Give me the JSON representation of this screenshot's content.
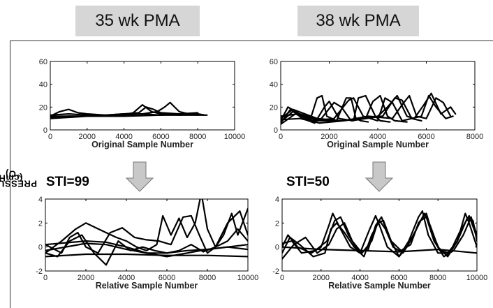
{
  "headers": {
    "left": "35 wk PMA",
    "right": "38 wk PMA"
  },
  "shared_ylabel": {
    "main": "PRESSURE",
    "unit": "(cmH",
    "sub": "2",
    "close": "O)"
  },
  "sti": {
    "left": "STI=99",
    "right": "STI=50"
  },
  "colors": {
    "line": "#000000",
    "arrow_fill": "#c8c8c8",
    "arrow_stroke": "#777777",
    "header_bg": "#d6d6d6"
  },
  "chart_data": [
    {
      "id": "tl",
      "type": "line",
      "xlabel": "Original Sample Number",
      "xlim": [
        0,
        10000
      ],
      "ylim": [
        0,
        60
      ],
      "xticks": [
        0,
        2000,
        4000,
        6000,
        8000,
        10000
      ],
      "yticks": [
        0,
        20,
        40,
        60
      ],
      "series": [
        {
          "x": [
            0,
            500,
            1000,
            1500,
            2000,
            3000,
            4000,
            5000,
            6000,
            7000,
            8000,
            8400
          ],
          "y": [
            12,
            16,
            18,
            15,
            14,
            13,
            14,
            14,
            13,
            14,
            14,
            13
          ]
        },
        {
          "x": [
            0,
            1000,
            2000,
            3000,
            4000,
            4500,
            5000,
            5500,
            6000,
            7000,
            8000,
            8300
          ],
          "y": [
            10,
            11,
            12,
            12,
            13,
            15,
            22,
            16,
            14,
            13,
            14,
            13
          ]
        },
        {
          "x": [
            0,
            1000,
            2000,
            3000,
            4000,
            5000,
            5800,
            6200,
            6500,
            7000,
            7500,
            8000
          ],
          "y": [
            11,
            12,
            12,
            12,
            13,
            14,
            16,
            20,
            24,
            16,
            14,
            13
          ]
        },
        {
          "x": [
            0,
            1000,
            2000,
            3000,
            4000,
            4800,
            5200,
            5600,
            6000,
            7000,
            8000
          ],
          "y": [
            13,
            14,
            13,
            13,
            14,
            15,
            20,
            18,
            15,
            14,
            15
          ]
        },
        {
          "x": [
            0,
            2000,
            4000,
            6000,
            8000,
            8500
          ],
          "y": [
            12,
            12,
            12,
            13,
            13,
            13
          ]
        }
      ]
    },
    {
      "id": "tr",
      "type": "line",
      "xlabel": "Original Sample Number",
      "xlim": [
        0,
        8000
      ],
      "ylim": [
        0,
        60
      ],
      "xticks": [
        0,
        2000,
        4000,
        6000,
        8000
      ],
      "yticks": [
        0,
        20,
        40,
        60
      ],
      "series": [
        {
          "x": [
            0,
            300,
            700,
            1200,
            1500,
            1700,
            1900,
            2300,
            2700,
            2900,
            3100,
            3300,
            3600
          ],
          "y": [
            8,
            20,
            15,
            8,
            28,
            30,
            12,
            8,
            28,
            28,
            10,
            8,
            7
          ]
        },
        {
          "x": [
            0,
            400,
            900,
            1400,
            1800,
            2000,
            2400,
            3000,
            3200,
            3500,
            3900,
            4100,
            4500
          ],
          "y": [
            6,
            18,
            10,
            6,
            20,
            25,
            10,
            8,
            28,
            30,
            12,
            8,
            7
          ]
        },
        {
          "x": [
            0,
            500,
            1100,
            1600,
            2200,
            2500,
            2900,
            3500,
            3800,
            4100,
            4400,
            4700,
            5200
          ],
          "y": [
            7,
            16,
            12,
            8,
            24,
            20,
            8,
            10,
            25,
            30,
            12,
            8,
            7
          ]
        },
        {
          "x": [
            0,
            600,
            1300,
            2200,
            2800,
            3000,
            3400,
            4000,
            4300,
            4600,
            5000,
            5400,
            5800
          ],
          "y": [
            5,
            14,
            8,
            10,
            26,
            28,
            12,
            8,
            28,
            24,
            8,
            10,
            8
          ]
        },
        {
          "x": [
            0,
            500,
            1500,
            2500,
            3500,
            4000,
            4400,
            4800,
            5200,
            5500,
            5900,
            6200,
            6600,
            7000,
            7200
          ],
          "y": [
            10,
            18,
            10,
            8,
            10,
            12,
            20,
            30,
            12,
            10,
            22,
            32,
            14,
            20,
            14
          ]
        },
        {
          "x": [
            0,
            700,
            1500,
            2500,
            3500,
            4200,
            4700,
            5000,
            5400,
            5800,
            6100,
            6400,
            6800,
            7100
          ],
          "y": [
            12,
            14,
            8,
            8,
            10,
            12,
            28,
            26,
            10,
            12,
            30,
            20,
            10,
            12
          ]
        },
        {
          "x": [
            0,
            800,
            1600,
            2600,
            3600,
            4600,
            5000,
            5300,
            5600,
            6000,
            6400,
            6700,
            7000
          ],
          "y": [
            9,
            10,
            6,
            8,
            12,
            10,
            22,
            30,
            12,
            10,
            28,
            24,
            12
          ]
        }
      ]
    },
    {
      "id": "bl",
      "type": "line",
      "xlabel": "Relative Sample Number",
      "xlim": [
        0,
        10000
      ],
      "ylim": [
        -2,
        4
      ],
      "xticks": [
        0,
        2000,
        4000,
        6000,
        8000,
        10000
      ],
      "yticks": [
        -2,
        0,
        2,
        4
      ],
      "series": [
        {
          "x": [
            0,
            800,
            1500,
            2000,
            2500,
            3000,
            3500,
            4000,
            4500,
            5000,
            5500,
            5800,
            6200,
            6600,
            7000,
            7400,
            7700,
            8000,
            8400,
            8800,
            9200,
            9500,
            10000
          ],
          "y": [
            -0.5,
            0.5,
            1.5,
            2.0,
            1.6,
            1.2,
            0.8,
            0.5,
            0,
            -0.3,
            0.2,
            2.6,
            1.0,
            2.4,
            0.8,
            2.0,
            4.5,
            1.5,
            0,
            1.0,
            2.8,
            1.0,
            3.2
          ]
        },
        {
          "x": [
            0,
            800,
            1200,
            1600,
            2000,
            2600,
            3200,
            3800,
            4400,
            5000,
            5600,
            6200,
            6800,
            7200,
            7600,
            8000,
            8400,
            9000,
            9500,
            10000
          ],
          "y": [
            0.2,
            -0.5,
            0.8,
            1.2,
            0,
            -0.5,
            1.2,
            1.6,
            0.8,
            0.6,
            0.5,
            0.2,
            2.5,
            2.6,
            1.0,
            -0.5,
            0,
            0.5,
            1.5,
            0.5
          ]
        },
        {
          "x": [
            0,
            600,
            1200,
            1800,
            2400,
            3000,
            3600,
            4200,
            4800,
            5400,
            6000,
            6600,
            7200,
            7800,
            8400,
            9000,
            9600,
            10000
          ],
          "y": [
            -0.5,
            -0.8,
            0.5,
            1.0,
            -0.5,
            -1.5,
            0.5,
            -0.3,
            0,
            -0.3,
            -0.5,
            -0.3,
            0.2,
            -0.4,
            0,
            2.0,
            3.0,
            1.0
          ]
        },
        {
          "x": [
            0,
            1000,
            2000,
            3000,
            4000,
            5000,
            6000,
            7000,
            8000,
            9000,
            10000
          ],
          "y": [
            -0.3,
            0,
            0.3,
            0.2,
            -0.2,
            -0.5,
            -0.5,
            -0.3,
            -0.2,
            0,
            0.2
          ]
        },
        {
          "x": [
            0,
            2000,
            4000,
            6000,
            8000,
            10000
          ],
          "y": [
            -0.8,
            -0.6,
            -0.6,
            -0.7,
            -0.7,
            -0.8
          ]
        },
        {
          "x": [
            0,
            2000,
            3000,
            4000,
            5000,
            6000,
            7000,
            8000,
            9000,
            10000
          ],
          "y": [
            0.2,
            0.5,
            0.4,
            0,
            -0.5,
            -0.8,
            -0.5,
            -0.2,
            0,
            -0.2
          ]
        }
      ]
    },
    {
      "id": "br",
      "type": "line",
      "xlabel": "Relative Sample Number",
      "xlim": [
        0,
        10000
      ],
      "ylim": [
        -2,
        4
      ],
      "xticks": [
        0,
        2000,
        4000,
        6000,
        8000,
        10000
      ],
      "yticks": [
        -2,
        0,
        2,
        4
      ],
      "series": [
        {
          "x": [
            0,
            300,
            800,
            1500,
            2000,
            2400,
            2600,
            3000,
            3500,
            4000,
            4500,
            4800,
            5000,
            5400,
            6000,
            6500,
            7000,
            7200,
            7500,
            8000,
            8500,
            9000,
            9400,
            9600,
            10000
          ],
          "y": [
            0,
            1.0,
            0,
            -0.5,
            0,
            1.8,
            2.8,
            1.5,
            0,
            -0.5,
            1.5,
            2.6,
            1.8,
            0,
            -0.8,
            0.5,
            2.5,
            3.0,
            1.0,
            -0.5,
            -0.5,
            0.5,
            2.8,
            2.0,
            0
          ]
        },
        {
          "x": [
            0,
            400,
            900,
            1600,
            2200,
            2500,
            2800,
            3200,
            3700,
            4200,
            4600,
            5000,
            5300,
            5700,
            6200,
            6700,
            7100,
            7400,
            7800,
            8300,
            8800,
            9300,
            9700,
            10000
          ],
          "y": [
            -0.5,
            0.8,
            0.2,
            -0.8,
            -0.5,
            1.5,
            2.0,
            1.2,
            0,
            -0.8,
            1.0,
            2.2,
            1.5,
            0,
            -0.5,
            0.8,
            2.2,
            2.5,
            0.5,
            -0.8,
            -0.3,
            1.0,
            2.5,
            1.0
          ]
        },
        {
          "x": [
            0,
            500,
            1000,
            1700,
            2300,
            2700,
            3000,
            3400,
            3900,
            4400,
            4800,
            5100,
            5500,
            6000,
            6400,
            6900,
            7300,
            7600,
            8000,
            8500,
            9000,
            9500,
            9800,
            10000
          ],
          "y": [
            0.3,
            0.5,
            -0.5,
            -0.3,
            0.5,
            2.2,
            2.5,
            1.0,
            -0.3,
            -0.3,
            1.8,
            2.5,
            0.8,
            -0.8,
            0,
            1.5,
            2.8,
            1.8,
            0,
            -0.8,
            0.5,
            2.4,
            2.2,
            0.5
          ]
        },
        {
          "x": [
            0,
            600,
            1200,
            1800,
            2400,
            2800,
            3200,
            3600,
            4100,
            4600,
            4900,
            5200,
            5600,
            6100,
            6600,
            7000,
            7400,
            7700,
            8100,
            8600,
            9100,
            9600,
            10000
          ],
          "y": [
            -1.0,
            0.2,
            0.8,
            -0.5,
            0.2,
            1.5,
            2.0,
            0.5,
            -0.5,
            0.5,
            2.0,
            2.2,
            0.5,
            -0.3,
            0.2,
            2.0,
            2.8,
            1.2,
            -0.3,
            -0.5,
            1.2,
            2.6,
            0.8
          ]
        },
        {
          "x": [
            0,
            2000,
            4000,
            6000,
            8000,
            10000
          ],
          "y": [
            0,
            -0.2,
            -0.3,
            -0.4,
            -0.2,
            -0.5
          ]
        }
      ]
    }
  ]
}
